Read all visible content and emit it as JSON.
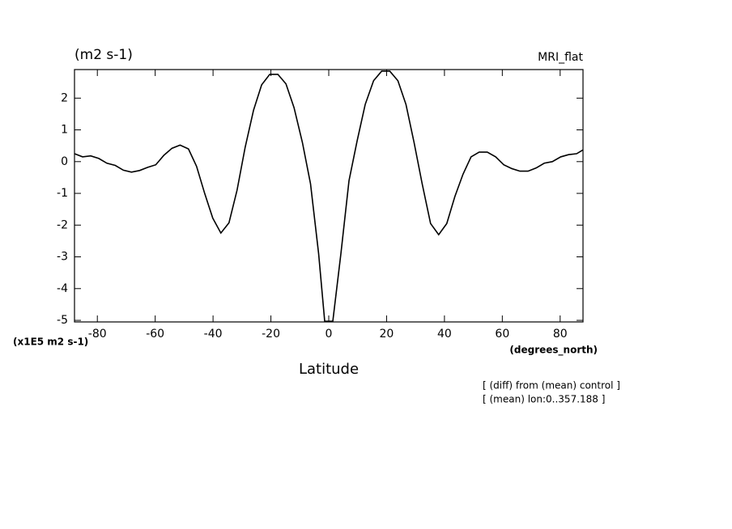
{
  "chart_data": {
    "type": "line",
    "title": "(m2 s-1)",
    "subtitle": "MRI_flat",
    "y_unit_label": "(x1E5 m2 s-1)",
    "x_unit_label": "(degrees_north)",
    "x_label": "Latitude",
    "annotations": [
      "[ (diff) from (mean) control ]",
      "[ (mean) lon:0..357.188 ]"
    ],
    "x": [
      -87.9,
      -85.1,
      -82.3,
      -79.5,
      -76.7,
      -73.8,
      -71.0,
      -68.2,
      -65.4,
      -62.6,
      -59.8,
      -57.0,
      -54.2,
      -51.4,
      -48.5,
      -45.7,
      -42.9,
      -40.1,
      -37.3,
      -34.5,
      -31.7,
      -28.9,
      -26.0,
      -23.2,
      -20.4,
      -17.6,
      -14.8,
      -12.0,
      -9.1,
      -6.3,
      -3.5,
      -1.4,
      1.4,
      4.2,
      7.0,
      9.8,
      12.6,
      15.5,
      18.3,
      21.1,
      23.9,
      26.7,
      29.5,
      32.3,
      35.2,
      38.0,
      40.8,
      43.6,
      46.4,
      49.2,
      52.0,
      54.8,
      57.7,
      60.5,
      63.3,
      66.1,
      68.9,
      71.7,
      74.5,
      77.3,
      80.2,
      82.9,
      85.7,
      87.9
    ],
    "series": [
      {
        "color": "#000000",
        "values": [
          0.25,
          0.15,
          0.18,
          0.1,
          -0.05,
          -0.12,
          -0.27,
          -0.33,
          -0.28,
          -0.18,
          -0.1,
          0.2,
          0.42,
          0.52,
          0.4,
          -0.15,
          -1.0,
          -1.78,
          -2.25,
          -1.93,
          -0.9,
          0.45,
          1.62,
          2.42,
          2.75,
          2.75,
          2.45,
          1.7,
          0.6,
          -0.7,
          -2.9,
          -5.03,
          -5.03,
          -2.9,
          -0.6,
          0.65,
          1.8,
          2.55,
          2.85,
          2.85,
          2.55,
          1.8,
          0.6,
          -0.7,
          -1.95,
          -2.3,
          -1.95,
          -1.1,
          -0.4,
          0.15,
          0.3,
          0.3,
          0.15,
          -0.1,
          -0.22,
          -0.3,
          -0.3,
          -0.2,
          -0.05,
          0.0,
          0.15,
          0.22,
          0.25,
          0.37
        ]
      }
    ],
    "xlim": [
      -87.9,
      87.9
    ],
    "ylim": [
      -5.05,
      2.9
    ],
    "xticks": [
      -80,
      -60,
      -40,
      -20,
      0,
      20,
      40,
      60,
      80
    ],
    "yticks": [
      -5,
      -4,
      -3,
      -2,
      -1,
      0,
      1,
      2
    ]
  }
}
